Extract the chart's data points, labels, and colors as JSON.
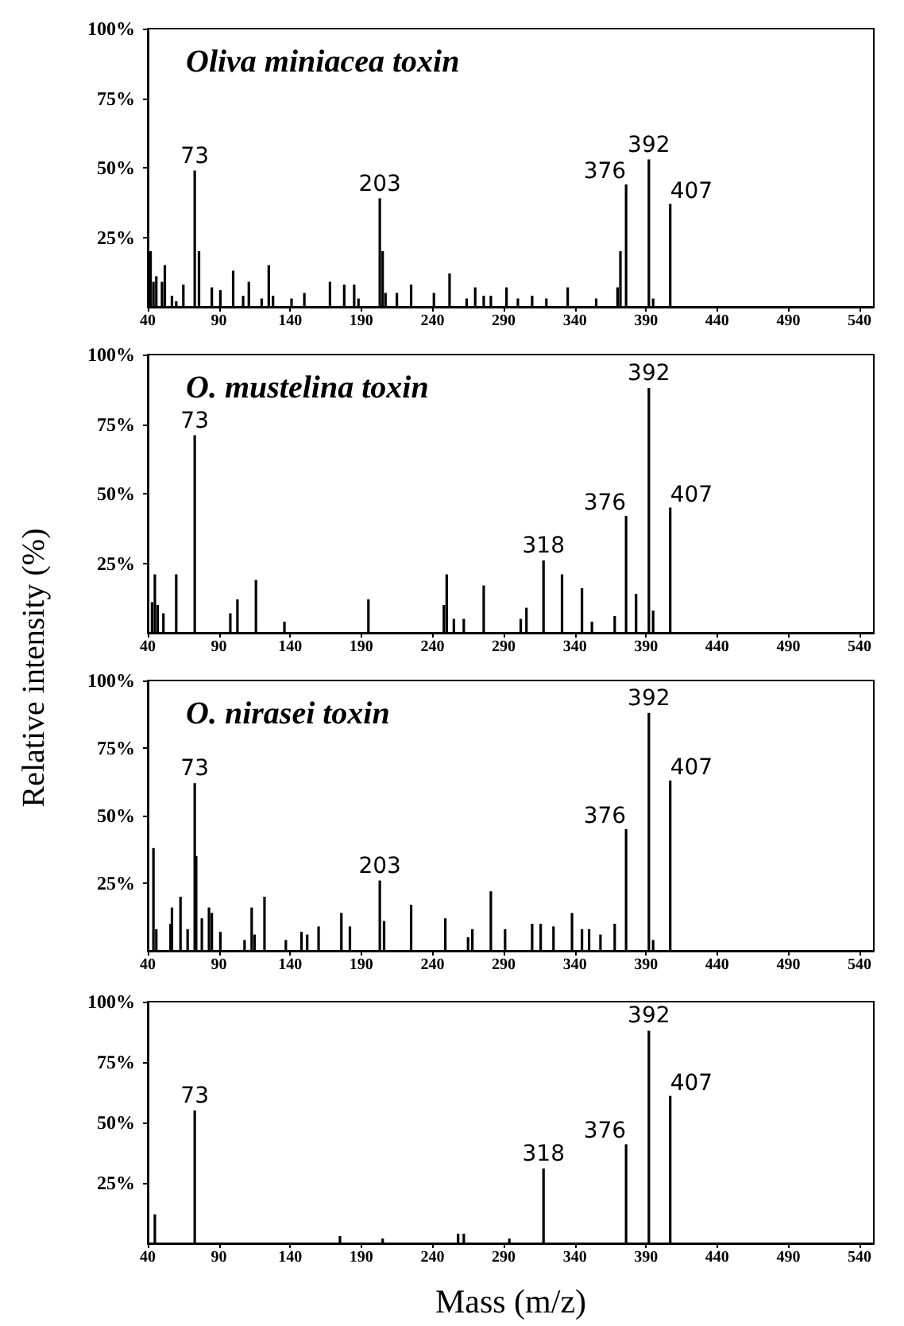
{
  "chart_data": [
    {
      "type": "bar",
      "title": "Oliva miniacea toxin",
      "color": "#000000",
      "x": [
        42,
        44,
        46,
        50,
        52,
        57,
        60,
        65,
        73,
        76,
        85,
        91,
        100,
        107,
        111,
        120,
        125,
        128,
        141,
        150,
        168,
        178,
        185,
        188,
        203,
        205,
        207,
        215,
        225,
        241,
        252,
        264,
        270,
        276,
        281,
        292,
        300,
        310,
        320,
        335,
        355,
        370,
        372,
        376,
        392,
        395,
        407
      ],
      "values": [
        20,
        9,
        11,
        9,
        15,
        4,
        2,
        8,
        49,
        20,
        7,
        6,
        13,
        4,
        9,
        3,
        15,
        4,
        3,
        5,
        9,
        8,
        8,
        3,
        39,
        20,
        5,
        5,
        8,
        5,
        12,
        3,
        7,
        4,
        4,
        7,
        3,
        4,
        3,
        7,
        3,
        7,
        20,
        44,
        53,
        3,
        37
      ],
      "xlim": [
        40,
        550
      ],
      "xticks": [
        40,
        90,
        140,
        190,
        240,
        290,
        340,
        390,
        440,
        490,
        540
      ],
      "ylim": [
        0,
        100
      ],
      "yticks": [
        {
          "value": 25,
          "label": "25%"
        },
        {
          "value": 50,
          "label": "50%"
        },
        {
          "value": 75,
          "label": "75%"
        },
        {
          "value": 100,
          "label": "100%"
        }
      ],
      "annotations": [
        {
          "text": "73",
          "x": 73,
          "y": 49
        },
        {
          "text": "203",
          "x": 203,
          "y": 39
        },
        {
          "text": "376",
          "x": 376,
          "y": 44
        },
        {
          "text": "392",
          "x": 392,
          "y": 53
        },
        {
          "text": "407",
          "x": 407,
          "y": 37
        }
      ]
    },
    {
      "type": "bar",
      "title": "O. mustelina toxin",
      "ylabel": "Relative intensity (%)",
      "color": "#000000",
      "x": [
        43,
        45,
        47,
        51,
        60,
        73,
        98,
        103,
        116,
        136,
        195,
        248,
        250,
        255,
        262,
        276,
        302,
        306,
        318,
        331,
        345,
        352,
        368,
        376,
        383,
        392,
        395,
        407
      ],
      "values": [
        11,
        21,
        10,
        7,
        21,
        71,
        7,
        12,
        19,
        4,
        12,
        10,
        21,
        5,
        5,
        17,
        5,
        9,
        26,
        21,
        16,
        4,
        6,
        42,
        14,
        88,
        8,
        45
      ],
      "xlim": [
        40,
        550
      ],
      "xticks": [
        40,
        90,
        140,
        190,
        240,
        290,
        340,
        390,
        440,
        490,
        540
      ],
      "ylim": [
        0,
        100
      ],
      "yticks": [
        {
          "value": 25,
          "label": "25%"
        },
        {
          "value": 50,
          "label": "50%"
        },
        {
          "value": 75,
          "label": "75%"
        },
        {
          "value": 100,
          "label": "100%"
        }
      ],
      "annotations": [
        {
          "text": "73",
          "x": 73,
          "y": 71
        },
        {
          "text": "318",
          "x": 318,
          "y": 26
        },
        {
          "text": "376",
          "x": 376,
          "y": 42
        },
        {
          "text": "392",
          "x": 392,
          "y": 88
        },
        {
          "text": "407",
          "x": 407,
          "y": 45
        }
      ]
    },
    {
      "type": "bar",
      "title": "O. nirasei toxin",
      "color": "#000000",
      "x": [
        44,
        46,
        56,
        57,
        63,
        68,
        73,
        74,
        78,
        83,
        85,
        91,
        108,
        113,
        115,
        122,
        137,
        148,
        152,
        160,
        176,
        182,
        203,
        206,
        225,
        249,
        265,
        268,
        281,
        291,
        310,
        316,
        325,
        338,
        345,
        350,
        358,
        368,
        376,
        392,
        395,
        407
      ],
      "values": [
        38,
        8,
        10,
        16,
        20,
        8,
        62,
        35,
        12,
        16,
        14,
        7,
        4,
        16,
        6,
        20,
        4,
        7,
        6,
        9,
        14,
        9,
        26,
        11,
        17,
        12,
        5,
        8,
        22,
        8,
        10,
        10,
        9,
        14,
        8,
        8,
        6,
        10,
        45,
        88,
        4,
        63
      ],
      "xlim": [
        40,
        550
      ],
      "xticks": [
        40,
        90,
        140,
        190,
        240,
        290,
        340,
        390,
        440,
        490,
        540
      ],
      "ylim": [
        0,
        100
      ],
      "yticks": [
        {
          "value": 25,
          "label": "25%"
        },
        {
          "value": 50,
          "label": "50%"
        },
        {
          "value": 75,
          "label": "75%"
        },
        {
          "value": 100,
          "label": "100%"
        }
      ],
      "annotations": [
        {
          "text": "73",
          "x": 73,
          "y": 62
        },
        {
          "text": "203",
          "x": 203,
          "y": 26
        },
        {
          "text": "376",
          "x": 376,
          "y": 45
        },
        {
          "text": "392",
          "x": 392,
          "y": 88
        },
        {
          "text": "407",
          "x": 407,
          "y": 63
        }
      ]
    },
    {
      "type": "bar",
      "xlabel": "Mass (m/z)",
      "color": "#000000",
      "x": [
        45,
        73,
        175,
        205,
        258,
        262,
        294,
        318,
        376,
        392,
        407
      ],
      "values": [
        12,
        55,
        3,
        2,
        4,
        4,
        2,
        31,
        41,
        88,
        61
      ],
      "xlim": [
        40,
        550
      ],
      "xticks": [
        40,
        90,
        140,
        190,
        240,
        290,
        340,
        390,
        440,
        490,
        540
      ],
      "ylim": [
        0,
        100
      ],
      "yticks": [
        {
          "value": 25,
          "label": "25%"
        },
        {
          "value": 50,
          "label": "50%"
        },
        {
          "value": 75,
          "label": "75%"
        },
        {
          "value": 100,
          "label": "100%"
        }
      ],
      "annotations": [
        {
          "text": "73",
          "x": 73,
          "y": 55
        },
        {
          "text": "318",
          "x": 318,
          "y": 31
        },
        {
          "text": "376",
          "x": 376,
          "y": 41
        },
        {
          "text": "392",
          "x": 392,
          "y": 88
        },
        {
          "text": "407",
          "x": 407,
          "y": 61
        }
      ]
    }
  ]
}
